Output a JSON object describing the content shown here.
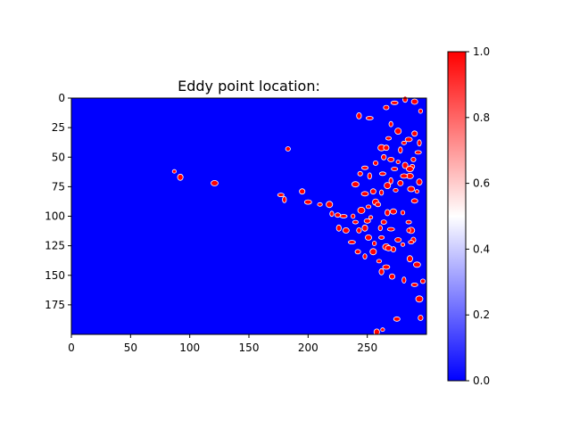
{
  "chart_data": {
    "type": "heatmap",
    "title": "Eddy point location:",
    "xlabel": "",
    "ylabel": "",
    "xlim": [
      0,
      300
    ],
    "ylim": [
      200,
      0
    ],
    "xticks": [
      0,
      50,
      100,
      150,
      200,
      250
    ],
    "yticks": [
      0,
      25,
      50,
      75,
      100,
      125,
      150,
      175
    ],
    "grid": false,
    "colormap": "bwr",
    "colorbar": {
      "range": [
        0,
        1
      ],
      "ticks": [
        "0.0",
        "0.2",
        "0.4",
        "0.6",
        "0.8",
        "1.0"
      ],
      "colors": [
        "#0000ff",
        "#ffffff",
        "#ff0000"
      ]
    },
    "background_value": 0,
    "eddy_value": 1,
    "eddy_points": [
      [
        87,
        62
      ],
      [
        92,
        67
      ],
      [
        121,
        72
      ],
      [
        183,
        43
      ],
      [
        177,
        82
      ],
      [
        180,
        86
      ],
      [
        195,
        79
      ],
      [
        200,
        88
      ],
      [
        210,
        90
      ],
      [
        218,
        90
      ],
      [
        220,
        98
      ],
      [
        225,
        99
      ],
      [
        230,
        100
      ],
      [
        226,
        110
      ],
      [
        232,
        112
      ],
      [
        238,
        100
      ],
      [
        240,
        105
      ],
      [
        245,
        95
      ],
      [
        243,
        112
      ],
      [
        250,
        104
      ],
      [
        253,
        101
      ],
      [
        248,
        110
      ],
      [
        240,
        73
      ],
      [
        244,
        64
      ],
      [
        248,
        59
      ],
      [
        252,
        66
      ],
      [
        255,
        79
      ],
      [
        248,
        81
      ],
      [
        251,
        92
      ],
      [
        257,
        88
      ],
      [
        261,
        110
      ],
      [
        264,
        105
      ],
      [
        270,
        111
      ],
      [
        267,
        97
      ],
      [
        272,
        96
      ],
      [
        280,
        97
      ],
      [
        285,
        105
      ],
      [
        287,
        112
      ],
      [
        289,
        120
      ],
      [
        290,
        87
      ],
      [
        292,
        79
      ],
      [
        294,
        71
      ],
      [
        286,
        66
      ],
      [
        288,
        58
      ],
      [
        293,
        46
      ],
      [
        294,
        38
      ],
      [
        290,
        30
      ],
      [
        285,
        35
      ],
      [
        281,
        38
      ],
      [
        276,
        28
      ],
      [
        270,
        22
      ],
      [
        266,
        8
      ],
      [
        273,
        4
      ],
      [
        282,
        1
      ],
      [
        290,
        3
      ],
      [
        295,
        11
      ],
      [
        268,
        34
      ],
      [
        262,
        42
      ],
      [
        264,
        50
      ],
      [
        270,
        52
      ],
      [
        276,
        54
      ],
      [
        282,
        57
      ],
      [
        286,
        60
      ],
      [
        257,
        55
      ],
      [
        263,
        64
      ],
      [
        270,
        70
      ],
      [
        278,
        72
      ],
      [
        281,
        66
      ],
      [
        274,
        78
      ],
      [
        267,
        74
      ],
      [
        262,
        80
      ],
      [
        259,
        90
      ],
      [
        252,
        17
      ],
      [
        243,
        15
      ],
      [
        251,
        118
      ],
      [
        256,
        123
      ],
      [
        262,
        118
      ],
      [
        266,
        126
      ],
      [
        272,
        128
      ],
      [
        276,
        120
      ],
      [
        280,
        124
      ],
      [
        286,
        136
      ],
      [
        292,
        141
      ],
      [
        297,
        155
      ],
      [
        290,
        158
      ],
      [
        281,
        154
      ],
      [
        271,
        151
      ],
      [
        266,
        143
      ],
      [
        260,
        138
      ],
      [
        255,
        130
      ],
      [
        248,
        134
      ],
      [
        242,
        130
      ],
      [
        237,
        122
      ],
      [
        262,
        147
      ],
      [
        268,
        127
      ],
      [
        285,
        112
      ],
      [
        287,
        122
      ],
      [
        294,
        170
      ],
      [
        295,
        186
      ],
      [
        275,
        187
      ],
      [
        263,
        196
      ],
      [
        258,
        198
      ],
      [
        287,
        77
      ],
      [
        289,
        52
      ],
      [
        273,
        60
      ],
      [
        278,
        44
      ],
      [
        266,
        42
      ]
    ]
  }
}
